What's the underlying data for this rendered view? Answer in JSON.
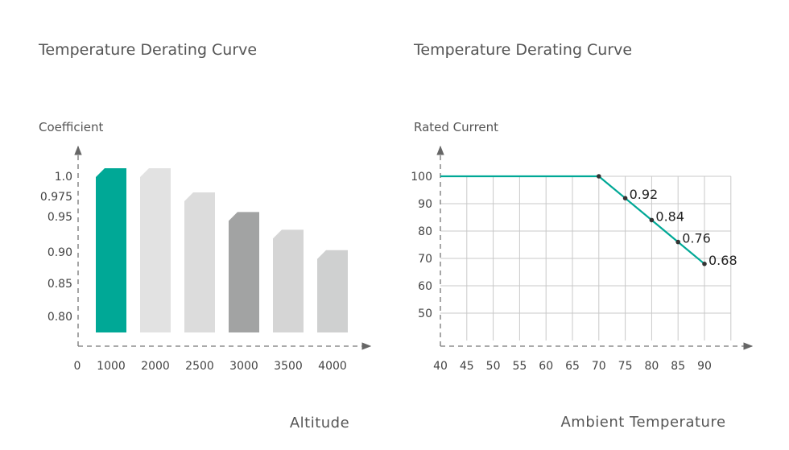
{
  "accent_color": "#00a896",
  "chart_data": [
    {
      "type": "bar",
      "title": "Temperature Derating Curve",
      "ylabel": "Coefficient",
      "xlabel": "Altitude",
      "x_origin_label": "0",
      "categories": [
        "1000",
        "2000",
        "2500",
        "3000",
        "3500",
        "4000"
      ],
      "values": [
        1.0,
        1.0,
        0.97,
        0.945,
        0.92,
        0.89
      ],
      "bar_colors": [
        "#00a896",
        "#e2e2e2",
        "#dcdcdc",
        "#a2a3a3",
        "#d5d5d5",
        "#cfd0d0"
      ],
      "yticks": [
        "0.80",
        "0.85",
        "0.90",
        "0.95",
        "0.975",
        "1.0"
      ],
      "grid": false
    },
    {
      "type": "line",
      "title": "Temperature Derating Curve",
      "ylabel": "Rated Current",
      "xlabel": "Ambient Temperature",
      "x": [
        40,
        70,
        75,
        80,
        85,
        90
      ],
      "y": [
        100,
        100,
        92,
        84,
        76,
        68
      ],
      "point_labels": [
        "",
        "",
        "0.92",
        "0.84",
        "0.76",
        "0.68"
      ],
      "xticks": [
        "40",
        "45",
        "50",
        "55",
        "60",
        "65",
        "70",
        "75",
        "80",
        "85",
        "90"
      ],
      "yticks": [
        "50",
        "60",
        "70",
        "80",
        "90",
        "100"
      ],
      "xlim": [
        40,
        90
      ],
      "ylim": [
        50,
        100
      ],
      "grid": true,
      "line_color": "#00a896"
    }
  ]
}
